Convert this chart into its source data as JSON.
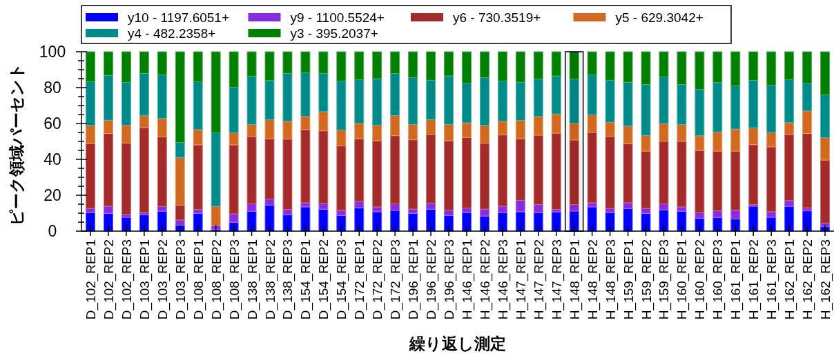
{
  "chart_data": {
    "type": "bar",
    "stacked": true,
    "xlabel": "繰り返し測定",
    "ylabel": "ピーク領域パーセント",
    "categories": [
      "D_102_REP1",
      "D_102_REP2",
      "D_102_REP3",
      "D_103_REP1",
      "D_103_REP2",
      "D_103_REP3",
      "D_108_REP1",
      "D_108_REP2",
      "D_108_REP3",
      "D_138_REP1",
      "D_138_REP2",
      "D_138_REP3",
      "D_154_REP1",
      "D_154_REP2",
      "D_154_REP3",
      "D_172_REP1",
      "D_172_REP2",
      "D_172_REP3",
      "D_196_REP1",
      "D_196_REP2",
      "D_196_REP3",
      "H_146_REP1",
      "H_146_REP2",
      "H_146_REP3",
      "H_147_REP1",
      "H_147_REP2",
      "H_147_REP3",
      "H_148_REP1",
      "H_148_REP2",
      "H_148_REP3",
      "H_159_REP1",
      "H_159_REP2",
      "H_159_REP3",
      "H_160_REP1",
      "H_160_REP2",
      "H_160_REP3",
      "H_161_REP1",
      "H_161_REP2",
      "H_161_REP3",
      "H_162_REP1",
      "H_162_REP2",
      "H_162_REP3"
    ],
    "ylim": [
      0,
      100
    ],
    "yticks": [
      0,
      {
        "value": 5,
        "label": null
      },
      {
        "value": 10,
        "label": null
      },
      {
        "value": 15,
        "label": null
      },
      20,
      {
        "value": 25,
        "label": null
      },
      {
        "value": 30,
        "label": null
      },
      {
        "value": 35,
        "label": null
      },
      40,
      {
        "value": 45,
        "label": null
      },
      {
        "value": 50,
        "label": null
      },
      {
        "value": 55,
        "label": null
      },
      60,
      {
        "value": 65,
        "label": null
      },
      {
        "value": 70,
        "label": null
      },
      {
        "value": 75,
        "label": null
      },
      80,
      {
        "value": 85,
        "label": null
      },
      {
        "value": 90,
        "label": null
      },
      {
        "value": 95,
        "label": null
      },
      100
    ],
    "legend": "top",
    "series": [
      {
        "name": "y10 - 1197.6051+",
        "color": "#0000ff",
        "values": [
          10.3,
          9.9,
          7.7,
          9.1,
          11.1,
          3.3,
          9.9,
          0.9,
          4.9,
          11.1,
          14.5,
          9.1,
          13.5,
          12.2,
          8.7,
          13.0,
          10.8,
          11.6,
          9.9,
          12.2,
          8.7,
          10.3,
          8.4,
          10.3,
          10.8,
          10.3,
          10.7,
          11.2,
          13.5,
          10.3,
          12.5,
          9.8,
          11.8,
          11.1,
          7.2,
          7.6,
          6.8,
          13.9,
          7.7,
          13.8,
          11.3,
          2.6
        ]
      },
      {
        "name": "y9 - 1100.5524+",
        "color": "#8a2be2",
        "values": [
          2.4,
          4.0,
          1.6,
          1.3,
          2.7,
          2.9,
          2.2,
          2.3,
          4.7,
          4.1,
          3.4,
          2.9,
          2.3,
          3.2,
          2.9,
          3.6,
          2.7,
          3.6,
          2.4,
          3.4,
          3.0,
          2.6,
          3.9,
          3.6,
          6.4,
          4.5,
          1.4,
          3.6,
          2.3,
          2.4,
          3.3,
          2.9,
          3.4,
          2.4,
          3.1,
          3.7,
          4.8,
          0.9,
          3.1,
          3.2,
          1.7,
          1.9
        ]
      },
      {
        "name": "y6 - 730.3519+",
        "color": "#a52a2a",
        "values": [
          36.1,
          40.5,
          39.8,
          47.3,
          38.8,
          8.3,
          36.0,
          0,
          38.5,
          37.5,
          33.6,
          39.3,
          40.8,
          40.5,
          36.0,
          34.9,
          36.9,
          38.0,
          38.6,
          38.3,
          38.7,
          39.3,
          36.7,
          39.7,
          34.3,
          38.7,
          42.5,
          36.0,
          39.2,
          40.1,
          32.9,
          31.9,
          34.9,
          36.5,
          34.6,
          33.3,
          33.0,
          33.4,
          36.2,
          36.9,
          41.4,
          35.1
        ]
      },
      {
        "name": "y5 - 629.3042+",
        "color": "#d2691e",
        "values": [
          10.1,
          7.4,
          9.9,
          6.7,
          10.3,
          26.6,
          8.5,
          10.6,
          6.7,
          6.8,
          10.6,
          10.0,
          7.4,
          10.7,
          8.8,
          8.7,
          8.7,
          11.2,
          8.6,
          8.3,
          9.1,
          8.2,
          10.0,
          7.7,
          10.2,
          10.4,
          10.7,
          9.4,
          9.8,
          7.9,
          9.9,
          8.7,
          9.9,
          9.4,
          8.3,
          10.7,
          12.3,
          9.4,
          8.0,
          6.6,
          12.6,
          12.5
        ]
      },
      {
        "name": "y4 - 482.2358+",
        "color": "#008b8b",
        "values": [
          24.4,
          25.0,
          23.9,
          23.5,
          24.2,
          8.3,
          26.7,
          41.0,
          25.4,
          26.9,
          21.8,
          26.6,
          24.3,
          21.3,
          27.3,
          24.2,
          25.9,
          23.5,
          26.1,
          21.9,
          27.0,
          22.1,
          26.6,
          22.4,
          21.3,
          20.9,
          21.2,
          24.6,
          22.3,
          23.4,
          24.4,
          28.4,
          26.0,
          22.3,
          25.8,
          27.5,
          24.1,
          26.5,
          26.4,
          23.9,
          15.5,
          23.9
        ]
      },
      {
        "name": "y3 - 395.2037+",
        "color": "#008000",
        "values": [
          16.7,
          13.2,
          17.1,
          12.1,
          12.9,
          50.6,
          16.7,
          45.2,
          19.8,
          13.6,
          16.1,
          12.1,
          11.7,
          12.1,
          16.3,
          15.6,
          15.0,
          12.1,
          14.4,
          15.9,
          13.5,
          17.5,
          14.4,
          16.3,
          17.0,
          15.2,
          13.5,
          15.2,
          12.9,
          15.9,
          17.0,
          18.3,
          14.0,
          18.3,
          21.0,
          17.2,
          19.0,
          15.9,
          18.6,
          15.6,
          17.5,
          24.0
        ]
      }
    ],
    "bands": [
      {
        "axis": "x",
        "from": "H_148_REP1",
        "to": "H_148_REP1",
        "color": "#000000"
      }
    ]
  }
}
